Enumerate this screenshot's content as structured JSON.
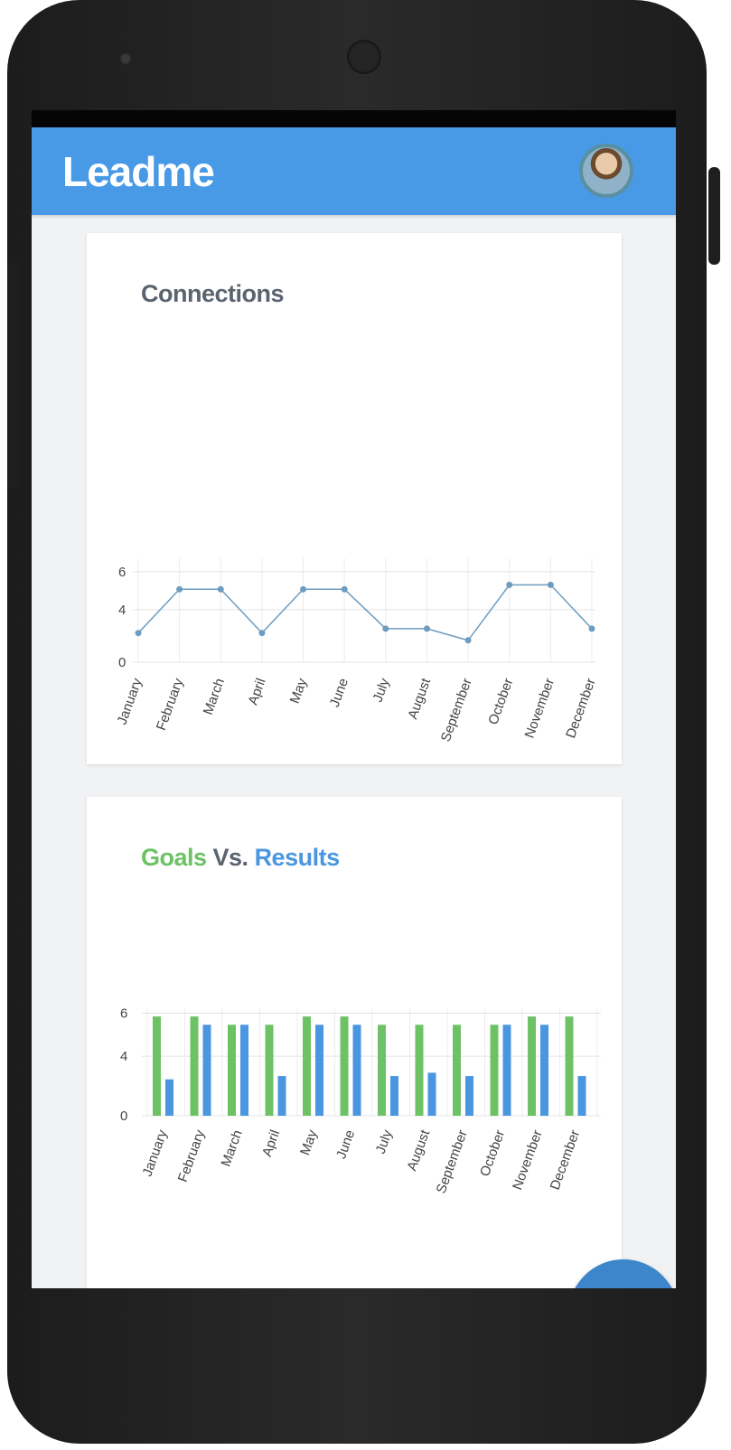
{
  "app": {
    "title": "Leadme"
  },
  "header": {
    "avatar_icon": "user-avatar-icon"
  },
  "cards": {
    "connections": {
      "title": "Connections"
    },
    "goals_results": {
      "title_goals": "Goals",
      "title_vs": " Vs. ",
      "title_results": "Results"
    }
  },
  "fab": {
    "icon": "menu-icon"
  },
  "colors": {
    "app_bar": "#4899e6",
    "goals": "#6cc264",
    "results": "#4a96e0",
    "fab": "#3d86cc"
  },
  "chart_data": [
    {
      "type": "line",
      "title": "Connections",
      "categories": [
        "January",
        "February",
        "March",
        "April",
        "May",
        "June",
        "July",
        "August",
        "September",
        "October",
        "November",
        "December"
      ],
      "values": [
        2,
        5,
        5,
        2,
        5,
        5,
        2.3,
        2.3,
        1.5,
        5.3,
        5.3,
        2.3
      ],
      "y_ticks": [
        "0",
        "4",
        "6"
      ],
      "ylim": [
        0,
        6.5
      ],
      "grid": true,
      "xlabel": "",
      "ylabel": ""
    },
    {
      "type": "bar",
      "title": "Goals Vs. Results",
      "categories": [
        "January",
        "February",
        "March",
        "April",
        "May",
        "June",
        "July",
        "August",
        "September",
        "October",
        "November",
        "December"
      ],
      "series": [
        {
          "name": "Goals",
          "color": "#6cc264",
          "values": [
            6,
            6,
            5.5,
            5.5,
            6,
            6,
            5.5,
            5.5,
            5.5,
            5.5,
            6,
            6
          ]
        },
        {
          "name": "Results",
          "color": "#4a96e0",
          "values": [
            2.2,
            5.5,
            5.5,
            2.4,
            5.5,
            5.5,
            2.4,
            2.6,
            2.4,
            5.5,
            5.5,
            2.4
          ]
        }
      ],
      "y_ticks": [
        "0",
        "4",
        "6"
      ],
      "ylim": [
        0,
        6.5
      ],
      "grid": true,
      "xlabel": "",
      "ylabel": ""
    }
  ]
}
